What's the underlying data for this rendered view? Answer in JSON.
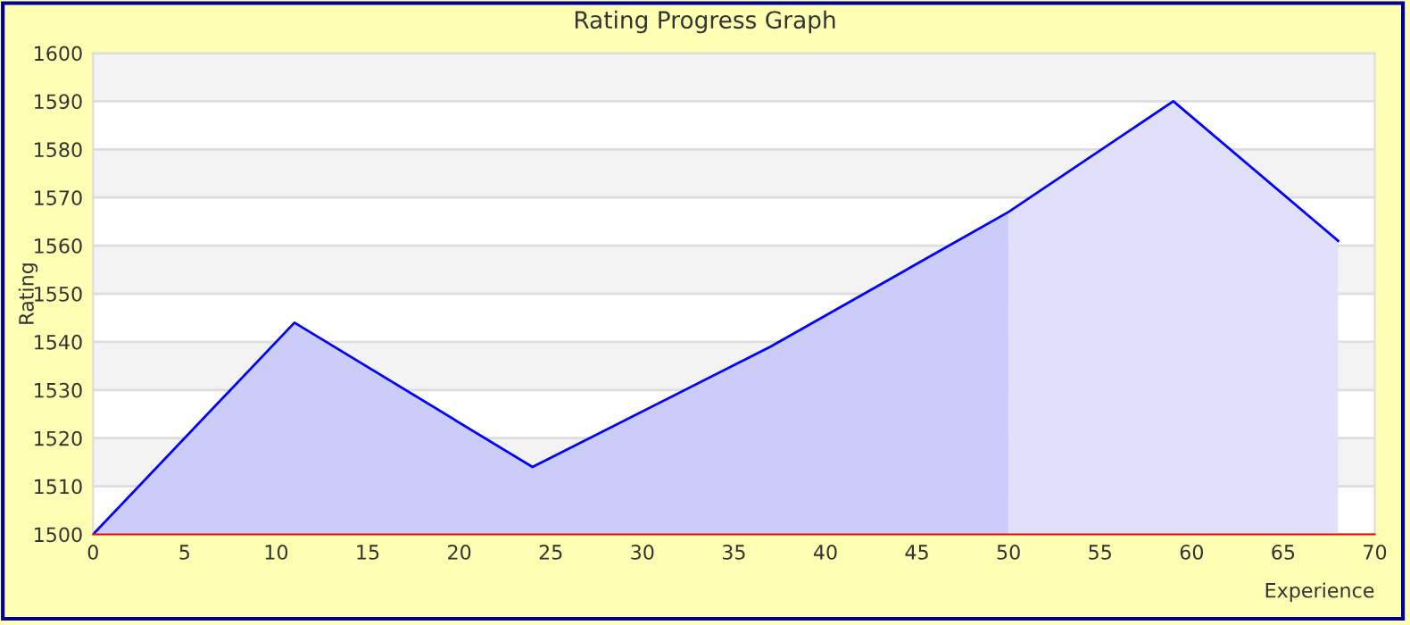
{
  "chart_data": {
    "type": "area",
    "title": "Rating Progress Graph",
    "xlabel": "Experience",
    "ylabel": "Rating",
    "series": [
      {
        "color": "#ccccfa",
        "x": [
          0,
          11,
          24,
          37,
          50
        ],
        "values": [
          1500,
          1544,
          1514,
          1539,
          1567
        ]
      },
      {
        "color": "#e0e0fa",
        "x": [
          50,
          59,
          68
        ],
        "values": [
          1567,
          1590,
          1561
        ]
      },
      {
        "type": "line",
        "color": "#0000ff",
        "x": [
          0,
          11,
          24,
          37,
          50,
          59,
          68
        ],
        "values": [
          1500,
          1544,
          1514,
          1539,
          1567,
          1590,
          1561
        ]
      }
    ],
    "xlim": [
      0,
      70
    ],
    "xticks": [
      0,
      5,
      10,
      15,
      20,
      25,
      30,
      35,
      40,
      45,
      50,
      55,
      60,
      65,
      70
    ],
    "ylim": [
      1500,
      1600
    ],
    "yticks": [
      1500,
      1510,
      1520,
      1530,
      1540,
      1550,
      1560,
      1570,
      1580,
      1590,
      1600
    ],
    "grid": "y",
    "legend": false
  }
}
